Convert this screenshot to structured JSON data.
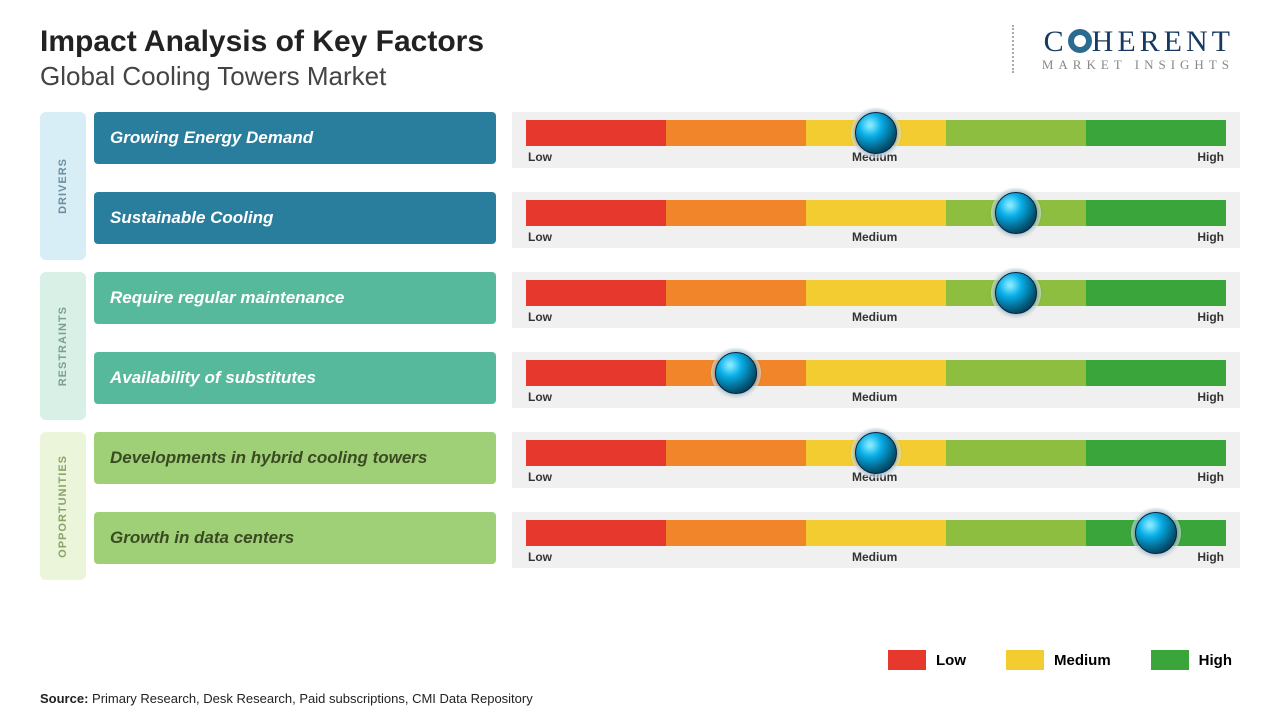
{
  "header": {
    "title": "Impact Analysis of Key Factors",
    "subtitle": "Global Cooling Towers Market"
  },
  "logo": {
    "main": "C   HERENT",
    "sub": "MARKET INSIGHTS"
  },
  "gauge": {
    "segment_colors": [
      "#e6382d",
      "#f08529",
      "#f2cc30",
      "#8ebe3f",
      "#3aa53a"
    ],
    "axis_labels": [
      "Low",
      "Medium",
      "High"
    ],
    "knob_color": "#0a98c9",
    "bg": "#f0f0f0"
  },
  "categories": [
    {
      "id": "drivers",
      "label": "DRIVERS",
      "tab_bg": "#d7eef7",
      "tab_text": "#6b8ea0",
      "row_bg": "#2a7e9d",
      "height_rows": 2
    },
    {
      "id": "restraints",
      "label": "RESTRAINTS",
      "tab_bg": "#d8f0e6",
      "tab_text": "#7aa091",
      "row_bg": "#57b99c",
      "height_rows": 2
    },
    {
      "id": "opportunities",
      "label": "OPPORTUNITIES",
      "tab_bg": "#eaf5da",
      "tab_text": "#8aa36a",
      "row_bg": "#9fd077",
      "height_rows": 2
    }
  ],
  "factors": [
    {
      "cat": "drivers",
      "label": "Growing Energy Demand",
      "value_pct": 50,
      "text_color": "#ffffff"
    },
    {
      "cat": "drivers",
      "label": "Sustainable Cooling",
      "value_pct": 70,
      "text_color": "#ffffff"
    },
    {
      "cat": "restraints",
      "label": "Require regular maintenance",
      "value_pct": 70,
      "text_color": "#ffffff"
    },
    {
      "cat": "restraints",
      "label": "Availability of substitutes",
      "value_pct": 30,
      "text_color": "#ffffff"
    },
    {
      "cat": "opportunities",
      "label": "Developments in hybrid cooling towers",
      "value_pct": 50,
      "text_color": "#3a4a22"
    },
    {
      "cat": "opportunities",
      "label": "Growth in data centers",
      "value_pct": 90,
      "text_color": "#3a4a22"
    }
  ],
  "legend": [
    {
      "label": "Low",
      "color": "#e6382d"
    },
    {
      "label": "Medium",
      "color": "#f2cc30"
    },
    {
      "label": "High",
      "color": "#3aa53a"
    }
  ],
  "source": {
    "prefix": "Source:",
    "text": " Primary Research, Desk Research, Paid subscriptions, CMI Data Repository"
  }
}
